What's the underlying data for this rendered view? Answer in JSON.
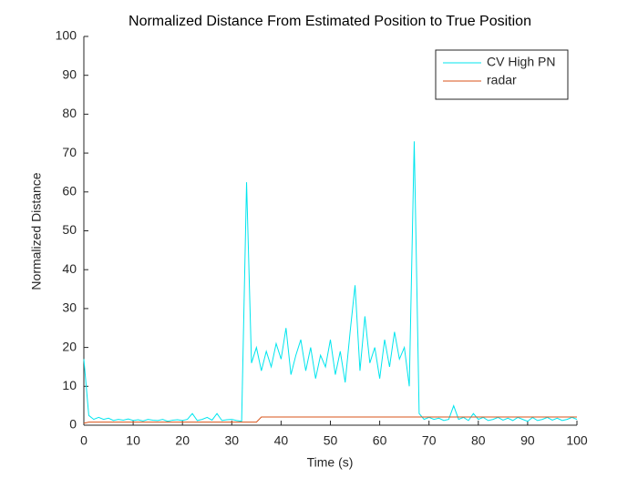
{
  "chart_data": {
    "type": "line",
    "title": "Normalized Distance From Estimated Position to True Position",
    "xlabel": "Time (s)",
    "ylabel": "Normalized Distance",
    "x": [
      0,
      1,
      2,
      3,
      4,
      5,
      6,
      7,
      8,
      9,
      10,
      11,
      12,
      13,
      14,
      15,
      16,
      17,
      18,
      19,
      20,
      21,
      22,
      23,
      24,
      25,
      26,
      27,
      28,
      29,
      30,
      31,
      32,
      33,
      34,
      35,
      36,
      37,
      38,
      39,
      40,
      41,
      42,
      43,
      44,
      45,
      46,
      47,
      48,
      49,
      50,
      51,
      52,
      53,
      54,
      55,
      56,
      57,
      58,
      59,
      60,
      61,
      62,
      63,
      64,
      65,
      66,
      67,
      68,
      69,
      70,
      71,
      72,
      73,
      74,
      75,
      76,
      77,
      78,
      79,
      80,
      81,
      82,
      83,
      84,
      85,
      86,
      87,
      88,
      89,
      90,
      91,
      92,
      93,
      94,
      95,
      96,
      97,
      98,
      99,
      100
    ],
    "series": [
      {
        "name": "CV High PN",
        "color": "#00e5ee",
        "values": [
          17,
          2.5,
          1.5,
          2,
          1.5,
          1.8,
          1.2,
          1.5,
          1.3,
          1.6,
          1.2,
          1.4,
          1.1,
          1.5,
          1.3,
          1.2,
          1.5,
          1.0,
          1.3,
          1.4,
          1.2,
          1.5,
          3,
          1.2,
          1.5,
          2,
          1.3,
          3,
          1.2,
          1.4,
          1.5,
          1.2,
          1.0,
          62.5,
          16,
          20,
          14,
          19,
          15,
          21,
          17,
          25,
          13,
          18,
          22,
          14,
          20,
          12,
          18,
          15,
          22,
          13,
          19,
          11,
          24,
          36,
          14,
          28,
          16,
          20,
          12,
          22,
          15,
          24,
          17,
          20,
          10,
          73,
          3,
          1.5,
          2,
          1.5,
          1.8,
          1.2,
          1.5,
          5,
          1.5,
          2,
          1.2,
          3,
          1.5,
          2,
          1.2,
          1.5,
          2,
          1.3,
          1.8,
          1.2,
          2,
          1.5,
          1,
          2,
          1.2,
          1.5,
          2,
          1.3,
          1.8,
          1.2,
          1.5,
          2,
          1.5
        ]
      },
      {
        "name": "radar",
        "color": "#d95319",
        "values": [
          0.5,
          0.8,
          0.8,
          0.8,
          0.8,
          0.8,
          0.8,
          0.8,
          0.8,
          0.8,
          0.8,
          0.8,
          0.8,
          0.8,
          0.8,
          0.8,
          0.8,
          0.8,
          0.8,
          0.8,
          0.8,
          0.8,
          0.8,
          0.8,
          0.8,
          0.8,
          0.8,
          0.8,
          0.8,
          0.8,
          0.8,
          0.8,
          0.8,
          0.8,
          0.8,
          0.8,
          2.1,
          2.1,
          2.1,
          2.1,
          2.1,
          2.1,
          2.1,
          2.1,
          2.1,
          2.1,
          2.1,
          2.1,
          2.1,
          2.1,
          2.1,
          2.1,
          2.1,
          2.1,
          2.1,
          2.1,
          2.1,
          2.1,
          2.1,
          2.1,
          2.1,
          2.1,
          2.1,
          2.1,
          2.1,
          2.1,
          2.1,
          2.1,
          2.1,
          2.1,
          2.1,
          2.1,
          2.1,
          2.1,
          2.1,
          2.1,
          2.1,
          2.1,
          2.1,
          2.1,
          2.1,
          2.1,
          2.1,
          2.1,
          2.1,
          2.1,
          2.1,
          2.1,
          2.1,
          2.1,
          2.1,
          2.1,
          2.1,
          2.1,
          2.1,
          2.1,
          2.1,
          2.1,
          2.1,
          2.1,
          2.1
        ]
      }
    ],
    "xlim": [
      0,
      100
    ],
    "xticks": [
      0,
      10,
      20,
      30,
      40,
      50,
      60,
      70,
      80,
      90,
      100
    ],
    "ylim": [
      0,
      100
    ],
    "yticks": [
      0,
      10,
      20,
      30,
      40,
      50,
      60,
      70,
      80,
      90,
      100
    ],
    "grid": false,
    "legend": "northeast"
  }
}
